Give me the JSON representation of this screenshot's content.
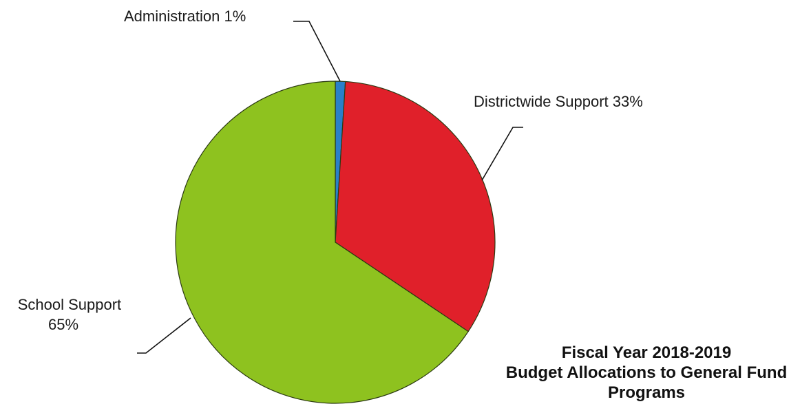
{
  "chart_data": {
    "type": "pie",
    "title": [
      "Fiscal Year 2018-2019",
      "Budget Allocations to General Fund",
      "Programs"
    ],
    "slices": [
      {
        "label": "Administration 1%",
        "label_lines": [
          "Administration 1%"
        ],
        "value": 1,
        "color": "#2a7fc9"
      },
      {
        "label": "Districtwide Support 33%",
        "label_lines": [
          "Districtwide Support 33%"
        ],
        "value": 33,
        "color": "#e0202a"
      },
      {
        "label": "School Support 65%",
        "label_lines": [
          "School Support",
          "65%"
        ],
        "value": 65,
        "color": "#8ec21f"
      }
    ]
  }
}
